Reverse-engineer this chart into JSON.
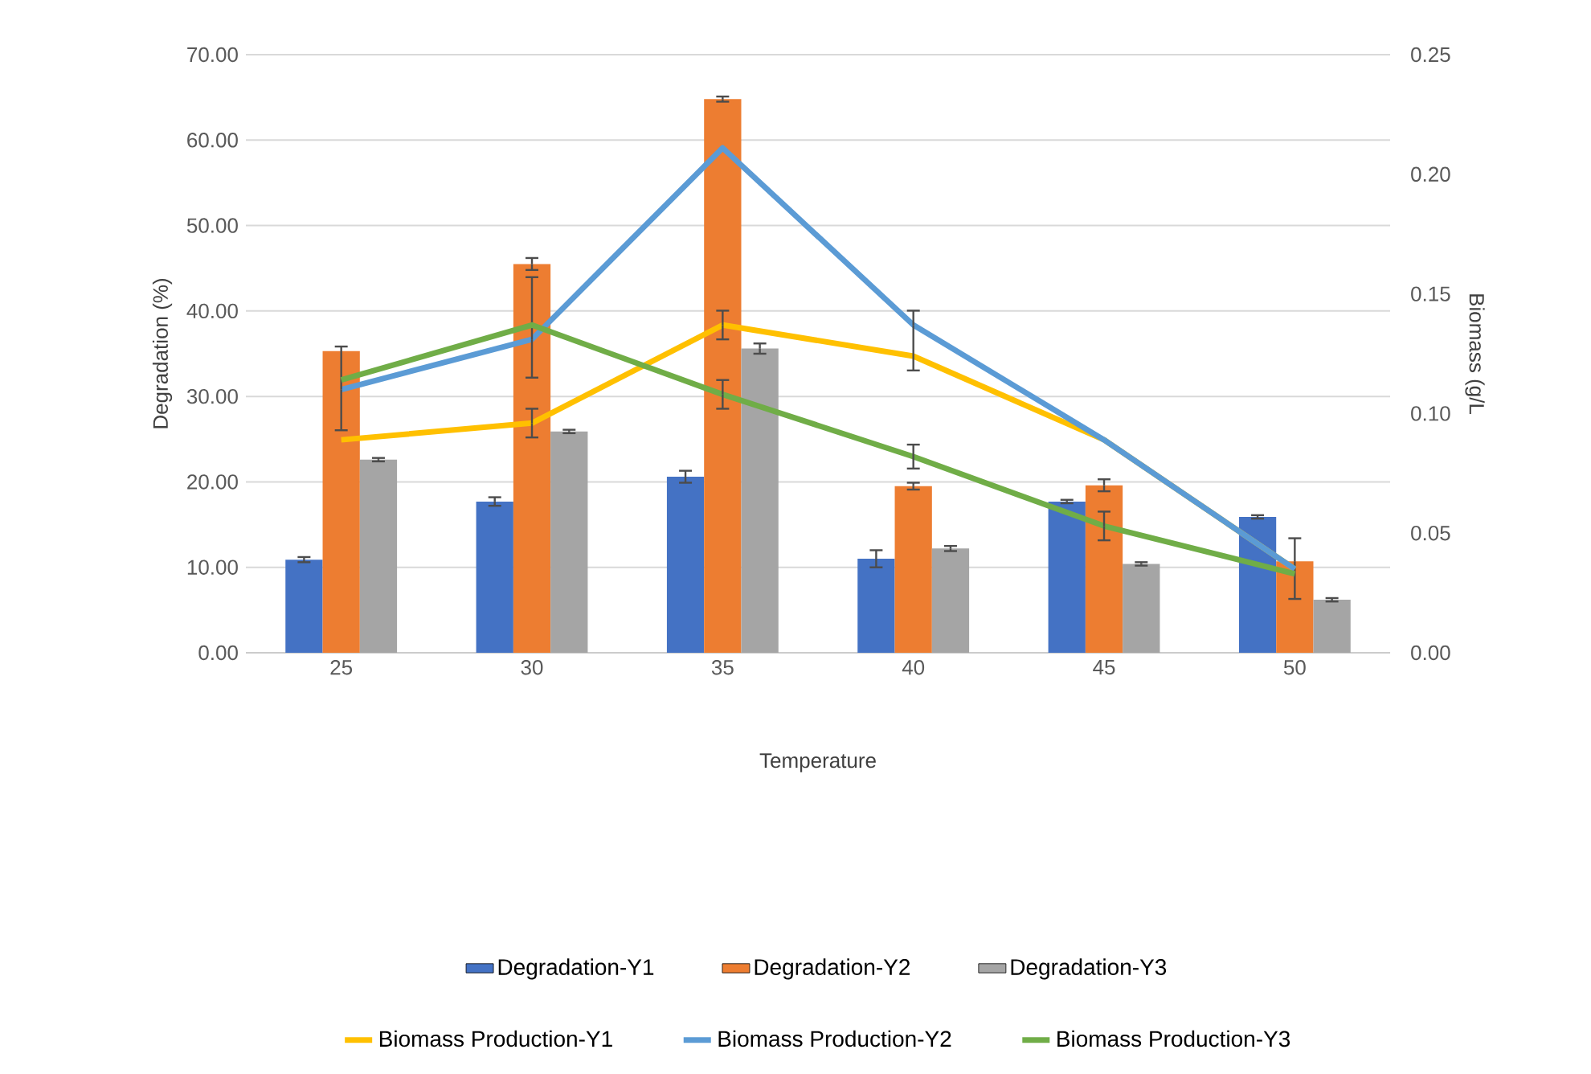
{
  "chart_data": {
    "type": "bar",
    "xlabel": "Temperature",
    "ylabel": "Degradation (%)",
    "y2label": "Biomass (g/L",
    "categories": [
      "25",
      "30",
      "35",
      "40",
      "45",
      "50"
    ],
    "ylim": [
      0,
      70
    ],
    "yticks": [
      {
        "value": 0,
        "label": "0.00"
      },
      {
        "value": 10,
        "label": "10.00"
      },
      {
        "value": 20,
        "label": "20.00"
      },
      {
        "value": 30,
        "label": "30.00"
      },
      {
        "value": 40,
        "label": "40.00"
      },
      {
        "value": 50,
        "label": "50.00"
      },
      {
        "value": 60,
        "label": "60.00"
      },
      {
        "value": 70,
        "label": "70.00"
      }
    ],
    "y2lim": [
      0,
      0.25
    ],
    "y2ticks": [
      {
        "value": 0,
        "label": "0.00"
      },
      {
        "value": 0.05,
        "label": "0.05"
      },
      {
        "value": 0.1,
        "label": "0.10"
      },
      {
        "value": 0.15,
        "label": "0.15"
      },
      {
        "value": 0.2,
        "label": "0.20"
      },
      {
        "value": 0.25,
        "label": "0.25"
      }
    ],
    "grid": "y",
    "legend": "bottom",
    "series": [
      {
        "name": "Degradation-Y1",
        "type": "bar",
        "color": "#4472c4",
        "values": [
          10.9,
          17.7,
          20.6,
          11.0,
          17.7,
          15.9
        ],
        "errors": [
          0.3,
          0.5,
          0.7,
          1.0,
          0.2,
          0.2
        ]
      },
      {
        "name": "Degradation-Y2",
        "type": "bar",
        "color": "#ed7d31",
        "values": [
          35.3,
          45.5,
          64.8,
          19.5,
          19.6,
          10.7
        ],
        "errors": [
          null,
          0.7,
          0.3,
          0.4,
          0.7,
          [
            6.3,
            13.4
          ]
        ]
      },
      {
        "name": "Degradation-Y3",
        "type": "bar",
        "color": "#a5a5a5",
        "values": [
          22.6,
          25.9,
          35.6,
          12.2,
          10.4,
          6.2
        ],
        "errors": [
          0.2,
          0.2,
          0.6,
          0.3,
          0.2,
          0.2
        ]
      },
      {
        "name": "Biomass Production-Y1",
        "type": "line",
        "axis": "y2",
        "color": "#ffc000",
        "values": [
          0.089,
          0.096,
          0.137,
          0.124,
          0.089,
          0.035
        ],
        "errors": [
          null,
          0.006,
          0.006,
          null,
          null,
          null
        ]
      },
      {
        "name": "Biomass Production-Y2",
        "type": "line",
        "axis": "y2",
        "color": "#5b9bd5",
        "values": [
          0.11,
          0.131,
          0.211,
          0.137,
          0.089,
          0.035
        ],
        "errors": [
          [
            0.093,
            0.128
          ],
          [
            0.115,
            0.157
          ],
          null,
          [
            0.118,
            0.143
          ],
          null,
          null
        ]
      },
      {
        "name": "Biomass Production-Y3",
        "type": "line",
        "axis": "y2",
        "color": "#70ad47",
        "values": [
          0.114,
          0.137,
          0.108,
          0.082,
          0.053,
          0.033
        ],
        "errors": [
          null,
          null,
          0.006,
          0.005,
          0.006,
          null
        ]
      }
    ]
  }
}
